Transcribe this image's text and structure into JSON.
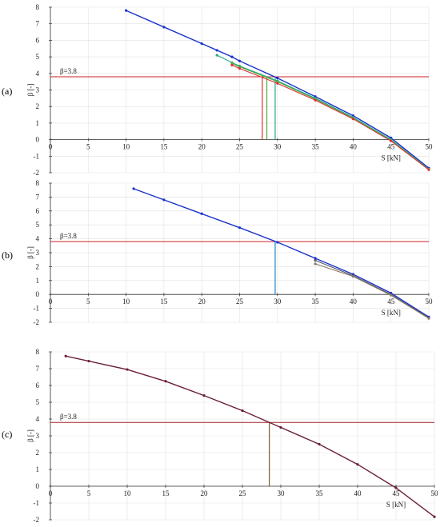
{
  "chart_data": [
    {
      "panel_label": "(a)",
      "type": "line",
      "xlabel": "S [kN]",
      "ylabel": "β [-]",
      "xlim": [
        0,
        50
      ],
      "ylim": [
        -2,
        8
      ],
      "xticks": [
        0,
        5,
        10,
        15,
        20,
        25,
        30,
        35,
        40,
        45,
        50
      ],
      "yticks": [
        -2,
        -1,
        0,
        1,
        2,
        3,
        4,
        5,
        6,
        7,
        8
      ],
      "grid": true,
      "threshold": {
        "label": "β=3.8",
        "value": 3.8,
        "color": "#cc2222"
      },
      "series": [
        {
          "color": "#1a33cc",
          "x": [
            10,
            15,
            20,
            22,
            24,
            25,
            30,
            35,
            40,
            45,
            50
          ],
          "y": [
            7.8,
            6.8,
            5.8,
            5.4,
            5.0,
            4.75,
            3.72,
            2.6,
            1.45,
            0.1,
            -1.72
          ]
        },
        {
          "color": "#22aa88",
          "x": [
            22,
            24,
            25,
            30,
            35,
            40,
            45,
            50
          ],
          "y": [
            5.1,
            4.65,
            4.45,
            3.55,
            2.5,
            1.35,
            0.0,
            -1.78
          ]
        },
        {
          "color": "#55aa44",
          "x": [
            24,
            25,
            30,
            35,
            40,
            45,
            50
          ],
          "y": [
            4.6,
            4.4,
            3.5,
            2.45,
            1.3,
            -0.05,
            -1.8
          ]
        },
        {
          "color": "#dd3333",
          "x": [
            24,
            25,
            30,
            35,
            40,
            45,
            50
          ],
          "y": [
            4.5,
            4.3,
            3.4,
            2.38,
            1.25,
            -0.08,
            -1.82
          ]
        }
      ],
      "drop_lines": [
        {
          "x": 28.0,
          "color": "#dd3333"
        },
        {
          "x": 28.6,
          "color": "#55aa44"
        },
        {
          "x": 29.7,
          "color": "#22aa88"
        }
      ]
    },
    {
      "panel_label": "(b)",
      "type": "line",
      "xlabel": "S [kN]",
      "ylabel": "β [-]",
      "xlim": [
        0,
        50
      ],
      "ylim": [
        -2,
        8
      ],
      "xticks": [
        0,
        5,
        10,
        15,
        20,
        25,
        30,
        35,
        40,
        45,
        50
      ],
      "yticks": [
        -2,
        -1,
        0,
        1,
        2,
        3,
        4,
        5,
        6,
        7,
        8
      ],
      "grid": true,
      "threshold": {
        "label": "β=3.8",
        "value": 3.8,
        "color": "#cc2222"
      },
      "series": [
        {
          "color": "#1a33cc",
          "x": [
            11,
            15,
            20,
            25,
            30,
            35,
            40,
            45,
            50
          ],
          "y": [
            7.6,
            6.8,
            5.8,
            4.8,
            3.75,
            2.6,
            1.45,
            0.1,
            -1.62
          ]
        },
        {
          "color": "#555566",
          "x": [
            35,
            40,
            45,
            50
          ],
          "y": [
            2.45,
            1.35,
            0.0,
            -1.68
          ]
        },
        {
          "color": "#887766",
          "x": [
            35,
            40,
            45,
            50
          ],
          "y": [
            2.2,
            1.3,
            -0.05,
            -1.72
          ]
        }
      ],
      "drop_lines": [
        {
          "x": 29.7,
          "color": "#2288cc"
        }
      ]
    },
    {
      "panel_label": "(c)",
      "type": "line",
      "xlabel": "S [kN]",
      "ylabel": "β [-]",
      "xlim": [
        0,
        50
      ],
      "ylim": [
        -2,
        8
      ],
      "xticks": [
        0,
        5,
        10,
        15,
        20,
        25,
        30,
        35,
        40,
        45,
        50
      ],
      "yticks": [
        -2,
        -1,
        0,
        1,
        2,
        3,
        4,
        5,
        6,
        7,
        8
      ],
      "grid": true,
      "threshold": {
        "label": "β=3.8",
        "value": 3.8,
        "color": "#aa2222"
      },
      "series": [
        {
          "color": "#6b1f3a",
          "x": [
            2,
            5,
            10,
            15,
            20,
            25,
            30,
            35,
            40,
            45,
            50
          ],
          "y": [
            7.75,
            7.45,
            6.95,
            6.25,
            5.4,
            4.5,
            3.5,
            2.5,
            1.3,
            -0.1,
            -1.82
          ]
        }
      ],
      "drop_lines": [
        {
          "x": 28.5,
          "color": "#7a5a22"
        }
      ]
    }
  ]
}
